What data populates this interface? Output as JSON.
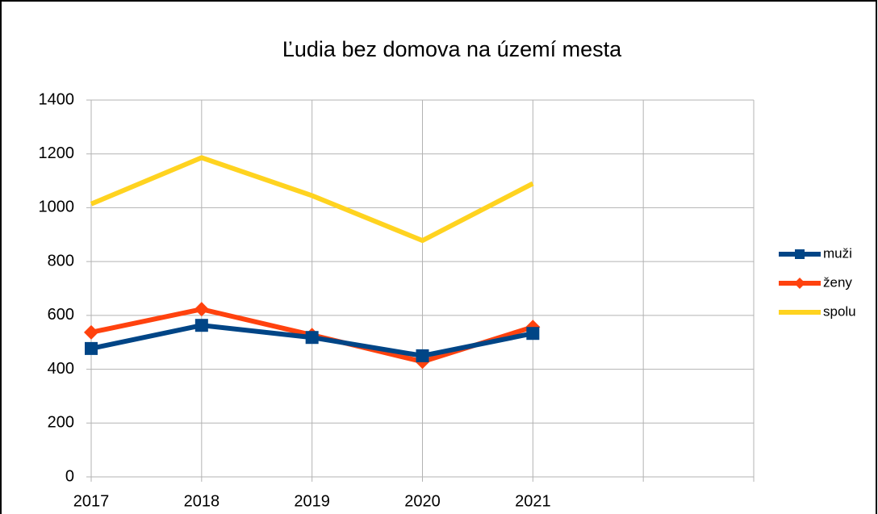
{
  "chart_data": {
    "type": "line",
    "title": "Ľudia bez domova na území mesta",
    "categories": [
      "2017",
      "2018",
      "2019",
      "2020",
      "2021",
      null,
      null
    ],
    "series": [
      {
        "name": "muži",
        "color": "#004586",
        "marker": "square",
        "values": [
          477,
          563,
          518,
          450,
          533,
          null,
          null
        ]
      },
      {
        "name": "ženy",
        "color": "#ff420e",
        "marker": "diamond",
        "values": [
          537,
          623,
          527,
          428,
          557,
          null,
          null
        ]
      },
      {
        "name": "spolu",
        "color": "#ffd320",
        "marker": "none",
        "values": [
          1014,
          1186,
          1045,
          878,
          1090,
          null,
          null
        ]
      }
    ],
    "ylim": [
      0,
      1400
    ],
    "yticks": [
      0,
      200,
      400,
      600,
      800,
      1000,
      1200,
      1400
    ],
    "grid": true,
    "legend": "right"
  }
}
